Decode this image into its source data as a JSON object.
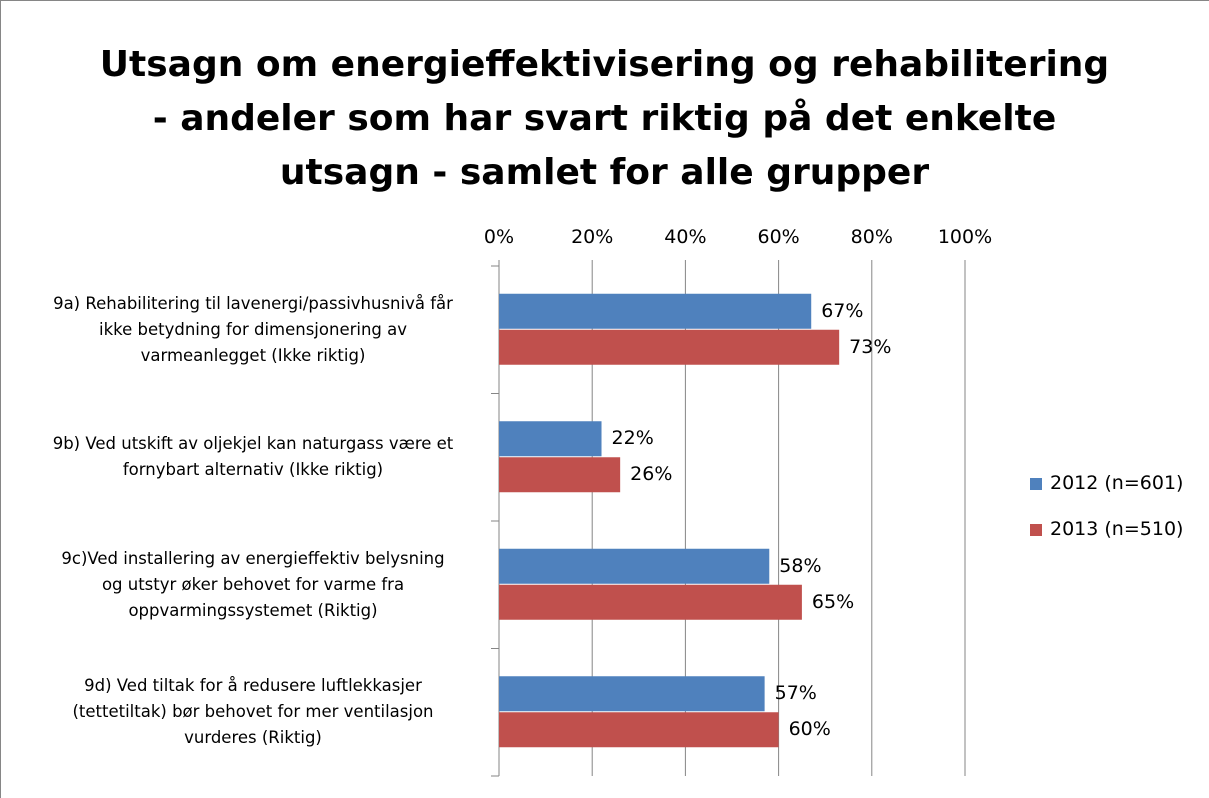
{
  "chart_data": {
    "type": "bar",
    "orientation": "horizontal",
    "title": "Utsagn om energieffektivisering og rehabilitering\n- andeler som har svart riktig på det enkelte\nutsagn - samlet for alle grupper",
    "categories": [
      "9a) Rehabilitering til lavenergi/passivhusnivå får\nikke betydning for dimensjonering av\nvarmeanlegget (Ikke riktig)",
      "9b) Ved utskift av oljekjel kan naturgass være et\nfornybart alternativ (Ikke riktig)",
      "9c)Ved installering av energieffektiv belysning\nog utstyr øker behovet for varme fra\noppvarmingssystemet (Riktig)",
      "9d) Ved tiltak for å redusere luftlekkasjer\n(tettetiltak) bør behovet for mer ventilasjon\nvurderes (Riktig)"
    ],
    "series": [
      {
        "name": "2012 (n=601)",
        "color": "#4f81bd",
        "values": [
          67,
          22,
          58,
          57
        ],
        "value_labels": [
          "67%",
          "22%",
          "58%",
          "57%"
        ]
      },
      {
        "name": "2013 (n=510)",
        "color": "#c0504d",
        "values": [
          73,
          26,
          65,
          60
        ],
        "value_labels": [
          "73%",
          "26%",
          "65%",
          "60%"
        ]
      }
    ],
    "xlim": [
      0,
      100
    ],
    "xticks": [
      {
        "value": 0,
        "label": "0%"
      },
      {
        "value": 20,
        "label": "20%"
      },
      {
        "value": 40,
        "label": "40%"
      },
      {
        "value": 60,
        "label": "60%"
      },
      {
        "value": 80,
        "label": "80%"
      },
      {
        "value": 100,
        "label": "100%"
      }
    ],
    "grid": true,
    "legend": "right"
  }
}
